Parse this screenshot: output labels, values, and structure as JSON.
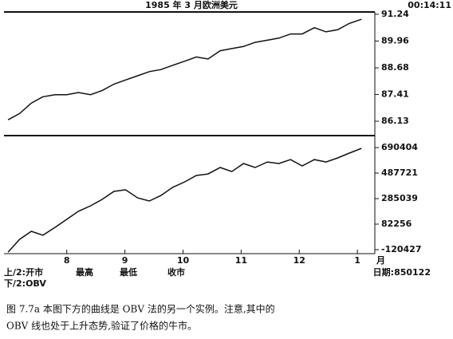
{
  "chart_data": [
    {
      "type": "line",
      "title": "1985 年 3 月欧洲美元",
      "time": "00:14:11",
      "color": "#111",
      "x": [
        6.99,
        7.19,
        7.39,
        7.59,
        7.8,
        8.0,
        8.2,
        8.41,
        8.61,
        8.81,
        9.01,
        9.22,
        9.42,
        9.62,
        9.82,
        10.03,
        10.23,
        10.43,
        10.64,
        10.84,
        11.04,
        11.24,
        11.45,
        11.65,
        11.85,
        12.05,
        12.26,
        12.46,
        12.66,
        12.86,
        13.07
      ],
      "values": [
        86.2,
        86.5,
        87.0,
        87.3,
        87.4,
        87.4,
        87.5,
        87.4,
        87.6,
        87.9,
        88.1,
        88.3,
        88.5,
        88.6,
        88.8,
        89.0,
        89.2,
        89.1,
        89.5,
        89.6,
        89.7,
        89.9,
        90.0,
        90.1,
        90.3,
        90.3,
        90.6,
        90.4,
        90.5,
        90.8,
        91.0
      ],
      "xlim": [
        6.92,
        13.3
      ],
      "ylim": [
        85.52,
        91.35
      ],
      "yticks": [
        91.24,
        89.96,
        88.68,
        87.41,
        86.13
      ]
    },
    {
      "type": "line",
      "color": "#111",
      "x_label": "月",
      "x": [
        6.99,
        7.19,
        7.39,
        7.59,
        7.8,
        8.0,
        8.2,
        8.41,
        8.61,
        8.81,
        9.01,
        9.22,
        9.42,
        9.62,
        9.82,
        10.03,
        10.23,
        10.43,
        10.64,
        10.84,
        11.04,
        11.24,
        11.45,
        11.65,
        11.85,
        12.05,
        12.26,
        12.46,
        12.66,
        12.86,
        13.07
      ],
      "values": [
        -140000,
        -38000,
        25000,
        -6000,
        57000,
        120000,
        184000,
        228000,
        279000,
        342000,
        355000,
        291000,
        266000,
        310000,
        374000,
        418000,
        469000,
        481000,
        532000,
        500000,
        564000,
        532000,
        576000,
        564000,
        595000,
        545000,
        595000,
        576000,
        608000,
        646000,
        684000
      ],
      "xlim": [
        6.92,
        13.3
      ],
      "ylim": [
        -152100,
        772760
      ],
      "yticks": [
        690404,
        487721,
        285039,
        82256,
        -120427
      ],
      "xticks": [
        8,
        9,
        10,
        11,
        12,
        {
          "value": 13,
          "label": "1"
        }
      ]
    }
  ],
  "footer": {
    "upper": [
      "上/2:开市",
      "最高",
      "最低",
      "收市"
    ],
    "lower": "下/2:OBV",
    "date": "日期:850122"
  },
  "caption": [
    "图 7.7a  本图下方的曲线是 OBV 法的另一个实例。注意,其中的",
    "OBV 线也处于上升态势,验证了价格的牛市。"
  ]
}
